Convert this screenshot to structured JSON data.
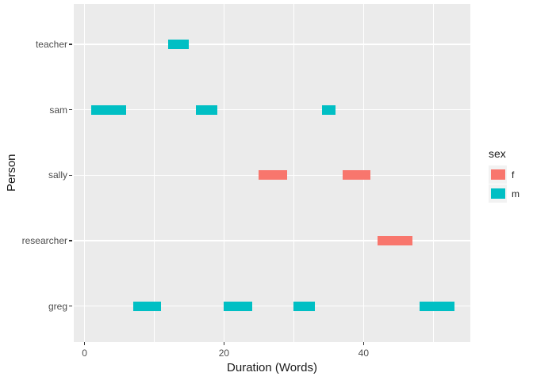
{
  "chart_data": {
    "type": "bar",
    "orientation": "horizontal-interval",
    "title": "",
    "xlabel": "Duration (Words)",
    "ylabel": "Person",
    "categories_top_to_bottom": [
      "teacher",
      "sam",
      "sally",
      "researcher",
      "greg"
    ],
    "x_ticks_major": [
      0,
      20,
      40
    ],
    "x_ticks_minor": [
      10,
      30,
      50
    ],
    "xlim": [
      -1.54,
      55.31
    ],
    "grid": true,
    "bars": [
      {
        "person": "sam",
        "sex": "m",
        "start": 1,
        "end": 6
      },
      {
        "person": "greg",
        "sex": "m",
        "start": 7,
        "end": 11
      },
      {
        "person": "teacher",
        "sex": "m",
        "start": 12,
        "end": 15
      },
      {
        "person": "sam",
        "sex": "m",
        "start": 16,
        "end": 19
      },
      {
        "person": "greg",
        "sex": "m",
        "start": 20,
        "end": 24
      },
      {
        "person": "sally",
        "sex": "f",
        "start": 25,
        "end": 29
      },
      {
        "person": "greg",
        "sex": "m",
        "start": 30,
        "end": 33
      },
      {
        "person": "sam",
        "sex": "m",
        "start": 34,
        "end": 36
      },
      {
        "person": "sally",
        "sex": "f",
        "start": 37,
        "end": 41
      },
      {
        "person": "researcher",
        "sex": "f",
        "start": 42,
        "end": 47
      },
      {
        "person": "greg",
        "sex": "m",
        "start": 48,
        "end": 53
      }
    ],
    "legend": {
      "title": "sex",
      "position": "right",
      "entries": [
        {
          "label": "f",
          "color": "#F8766D"
        },
        {
          "label": "m",
          "color": "#00BFC4"
        }
      ]
    },
    "colors": {
      "f": "#F8766D",
      "m": "#00BFC4",
      "panel_bg": "#EBEBEB",
      "grid": "#FFFFFF",
      "tick_text": "#4D4D4D",
      "axis_title": "#1A1A1A",
      "legend_key_bg": "#F2F2F2",
      "tick_mark": "#333333"
    }
  }
}
